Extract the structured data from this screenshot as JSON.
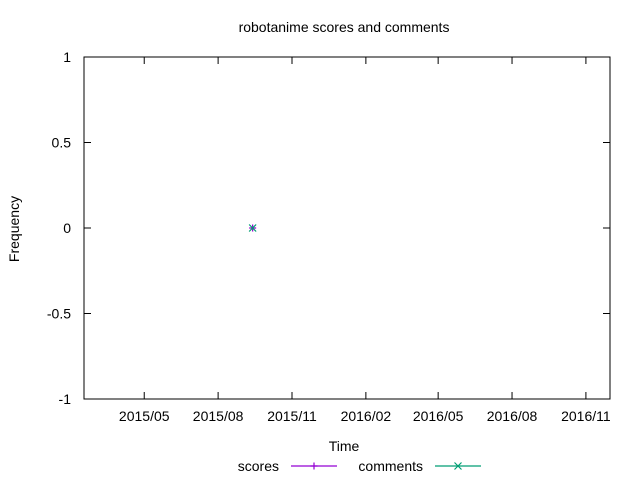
{
  "chart_data": {
    "type": "scatter",
    "title": "robotanime scores and comments",
    "xlabel": "Time",
    "ylabel": "Frequency",
    "x_axis_type": "date",
    "xlim": [
      "2015-02-15",
      "2016-12-01"
    ],
    "ylim": [
      -1,
      1
    ],
    "x_ticks": [
      "2015-05-01",
      "2015-08-01",
      "2015-11-01",
      "2016-02-01",
      "2016-05-01",
      "2016-08-01",
      "2016-11-01"
    ],
    "x_tick_labels": [
      "2015/05",
      "2015/08",
      "2015/11",
      "2016/02",
      "2016/05",
      "2016/08",
      "2016/11"
    ],
    "y_ticks": [
      1,
      0.5,
      0,
      -0.5,
      -1
    ],
    "y_tick_labels": [
      "1",
      "0.5",
      "0",
      "-0.5",
      "-1"
    ],
    "grid": false,
    "legend_position": "bottom",
    "series": [
      {
        "name": "scores",
        "color": "#9400d3",
        "marker": "plus",
        "points": [
          {
            "x": "2015-09-13",
            "y": 0
          }
        ]
      },
      {
        "name": "comments",
        "color": "#009e73",
        "marker": "cross",
        "points": [
          {
            "x": "2015-09-13",
            "y": 0
          }
        ]
      }
    ]
  }
}
